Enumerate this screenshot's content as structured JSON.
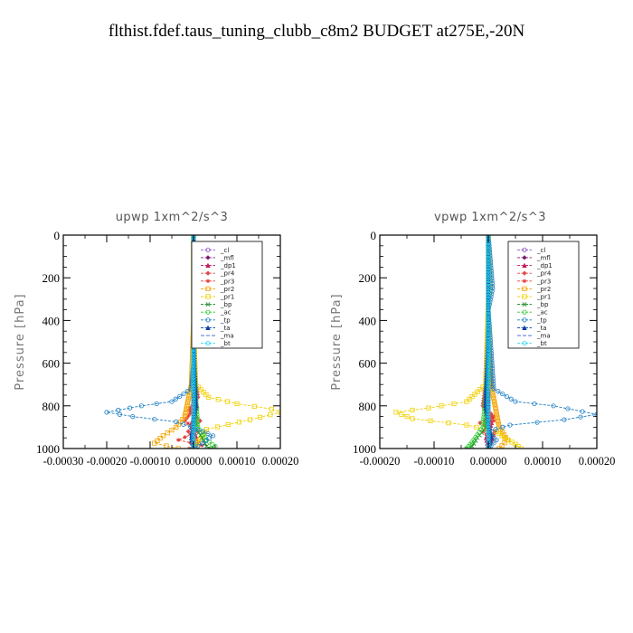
{
  "figure": {
    "title": "flthist.fdef.taus_tuning_clubb_c8m2  BUDGET at275E,-20N"
  },
  "chart_data": [
    {
      "type": "line",
      "title": "upwp   1xm^2/s^3",
      "ylabel": "Pressure [hPa]",
      "xlabel": "",
      "ylim": [
        1000,
        0
      ],
      "xlim": [
        -0.0003,
        0.0002
      ],
      "yticks": [
        "0",
        "200",
        "400",
        "600",
        "800",
        "1000"
      ],
      "xticks": [
        "-0.00030",
        "-0.00020",
        "-0.00010",
        "0.00000",
        "0.00010",
        "0.00020"
      ],
      "grid": false,
      "legend_position": "top-right",
      "series": [
        {
          "name": "_cl",
          "color": "#8a4fc9",
          "marker": "circle",
          "x": [
            0,
            0,
            0,
            0
          ],
          "y": [
            0,
            400,
            800,
            1000
          ]
        },
        {
          "name": "_mfl",
          "color": "#7b1a6e",
          "marker": "diamond",
          "x": [
            0,
            0,
            0,
            0
          ],
          "y": [
            0,
            400,
            800,
            1000
          ]
        },
        {
          "name": "_dp1",
          "color": "#c2185b",
          "marker": "triangle",
          "x": [
            0,
            0,
            0,
            0,
            -5e-06,
            8e-06,
            -4e-06,
            6e-06,
            0
          ],
          "y": [
            0,
            200,
            400,
            600,
            700,
            800,
            880,
            950,
            1000
          ]
        },
        {
          "name": "_pr4",
          "color": "#e0474c",
          "marker": "diamond",
          "x": [
            0,
            0,
            0,
            1e-05,
            -1e-05,
            1.5e-05,
            -1.2e-05,
            1e-05,
            0
          ],
          "y": [
            0,
            300,
            600,
            760,
            820,
            870,
            920,
            970,
            1000
          ]
        },
        {
          "name": "_pr3",
          "color": "#e53935",
          "marker": "star",
          "x": [
            0,
            0,
            0,
            5e-06,
            -2e-05,
            1e-05,
            -3.5e-05,
            2e-05,
            -1e-05
          ],
          "y": [
            0,
            300,
            600,
            800,
            870,
            920,
            960,
            985,
            1000
          ]
        },
        {
          "name": "_pr2",
          "color": "#f4a300",
          "marker": "square",
          "x": [
            0,
            0,
            -5e-06,
            -2e-05,
            -4e-05,
            -7e-05,
            -9e-05,
            -3.5e-05
          ],
          "y": [
            0,
            400,
            700,
            850,
            900,
            940,
            975,
            1000
          ]
        },
        {
          "name": "_pr1",
          "color": "#f0d000",
          "marker": "square",
          "x": [
            0,
            0,
            5e-06,
            3.5e-05,
            0.0001,
            0.00018,
            0.0002,
            0.00013,
            3e-05,
            0
          ],
          "y": [
            0,
            400,
            700,
            760,
            790,
            815,
            830,
            865,
            910,
            1000
          ]
        },
        {
          "name": "_bp",
          "color": "#1b8a2a",
          "marker": "cross",
          "x": [
            0,
            0,
            5e-06,
            2e-05,
            3e-05,
            4e-05
          ],
          "y": [
            0,
            600,
            900,
            950,
            990,
            1000
          ]
        },
        {
          "name": "_ac",
          "color": "#32cd32",
          "marker": "circle",
          "x": [
            0,
            0,
            1e-05,
            3e-05,
            5e-05,
            4e-05
          ],
          "y": [
            0,
            600,
            900,
            960,
            990,
            1000
          ]
        },
        {
          "name": "_tp",
          "color": "#1e7fc4",
          "marker": "circle",
          "x": [
            0,
            0,
            -5e-06,
            -5e-05,
            -0.00012,
            -0.0002,
            -0.00014,
            -4e-05,
            1e-05,
            4.5e-05,
            2e-05,
            0
          ],
          "y": [
            0,
            600,
            720,
            780,
            800,
            830,
            850,
            875,
            910,
            940,
            975,
            1000
          ]
        },
        {
          "name": "_ta",
          "color": "#0a3fa8",
          "marker": "triangle",
          "x": [
            0,
            0,
            5e-06,
            -5e-06,
            0
          ],
          "y": [
            0,
            400,
            800,
            950,
            1000
          ]
        },
        {
          "name": "_ma",
          "color": "#3a5fcd",
          "marker": "none",
          "x": [
            0,
            0,
            0
          ],
          "y": [
            0,
            500,
            1000
          ]
        },
        {
          "name": "_bt",
          "color": "#22d3ee",
          "marker": "circle",
          "x": [
            0,
            0,
            0
          ],
          "y": [
            0,
            500,
            1000
          ]
        }
      ]
    },
    {
      "type": "line",
      "title": "vpwp   1xm^2/s^3",
      "ylabel": "Pressure [hPa]",
      "xlabel": "",
      "ylim": [
        1000,
        0
      ],
      "xlim": [
        -0.0002,
        0.0002
      ],
      "yticks": [
        "0",
        "200",
        "400",
        "600",
        "800",
        "1000"
      ],
      "xticks": [
        "-0.00020",
        "-0.00010",
        "0.00000",
        "0.00010",
        "0.00020"
      ],
      "grid": false,
      "legend_position": "top-right",
      "series": [
        {
          "name": "_cl",
          "color": "#8a4fc9",
          "marker": "circle",
          "x": [
            0,
            0,
            0,
            0
          ],
          "y": [
            0,
            400,
            800,
            1000
          ]
        },
        {
          "name": "_mfl",
          "color": "#7b1a6e",
          "marker": "diamond",
          "x": [
            0,
            0,
            0,
            0
          ],
          "y": [
            0,
            400,
            800,
            1000
          ]
        },
        {
          "name": "_dp1",
          "color": "#c2185b",
          "marker": "triangle",
          "x": [
            0,
            0,
            0,
            5e-06,
            -8e-06,
            6e-06,
            -4e-06,
            0
          ],
          "y": [
            0,
            200,
            500,
            700,
            800,
            880,
            950,
            1000
          ]
        },
        {
          "name": "_pr4",
          "color": "#e0474c",
          "marker": "diamond",
          "x": [
            0,
            0,
            0,
            -1e-05,
            1e-05,
            -1.5e-05,
            1.2e-05,
            0
          ],
          "y": [
            0,
            300,
            600,
            800,
            850,
            880,
            920,
            1000
          ]
        },
        {
          "name": "_pr3",
          "color": "#e53935",
          "marker": "star",
          "x": [
            0,
            0,
            0,
            -5e-06,
            1e-05,
            -1e-05,
            8e-06,
            0
          ],
          "y": [
            0,
            300,
            600,
            800,
            870,
            920,
            960,
            1000
          ]
        },
        {
          "name": "_pr2",
          "color": "#f4a300",
          "marker": "square",
          "x": [
            0,
            0,
            5e-06,
            2e-05,
            3.5e-05,
            2e-05
          ],
          "y": [
            0,
            400,
            700,
            900,
            960,
            1000
          ]
        },
        {
          "name": "_pr1",
          "color": "#f0d000",
          "marker": "square",
          "x": [
            0,
            3e-06,
            0,
            -5e-06,
            -4e-05,
            -0.00011,
            -0.00017,
            -0.00014,
            -4e-05,
            1.5e-05,
            3e-05,
            5e-05,
            6e-05
          ],
          "y": [
            0,
            250,
            300,
            700,
            780,
            810,
            830,
            860,
            890,
            920,
            950,
            980,
            1000
          ]
        },
        {
          "name": "_bp",
          "color": "#1b8a2a",
          "marker": "cross",
          "x": [
            0,
            0,
            -5e-06,
            -2e-05,
            -3e-05,
            -4e-05
          ],
          "y": [
            0,
            600,
            900,
            950,
            990,
            1000
          ]
        },
        {
          "name": "_ac",
          "color": "#32cd32",
          "marker": "circle",
          "x": [
            0,
            0,
            -1e-05,
            -3e-05,
            -4e-05
          ],
          "y": [
            0,
            600,
            900,
            970,
            1000
          ]
        },
        {
          "name": "_tp",
          "color": "#1e7fc4",
          "marker": "circle",
          "x": [
            0,
            8e-06,
            0,
            1e-05,
            5e-05,
            0.00012,
            0.0002,
            0.00014,
            4e-05,
            0,
            1.5e-05,
            0
          ],
          "y": [
            0,
            250,
            350,
            720,
            780,
            800,
            840,
            865,
            890,
            920,
            960,
            1000
          ]
        },
        {
          "name": "_ta",
          "color": "#0a3fa8",
          "marker": "triangle",
          "x": [
            0,
            0,
            -5e-06,
            5e-06,
            0
          ],
          "y": [
            0,
            400,
            800,
            950,
            1000
          ]
        },
        {
          "name": "_ma",
          "color": "#3a5fcd",
          "marker": "none",
          "x": [
            0,
            0,
            0
          ],
          "y": [
            0,
            500,
            1000
          ]
        },
        {
          "name": "_bt",
          "color": "#22d3ee",
          "marker": "circle",
          "x": [
            0,
            0,
            0
          ],
          "y": [
            0,
            500,
            1000
          ]
        }
      ]
    }
  ]
}
